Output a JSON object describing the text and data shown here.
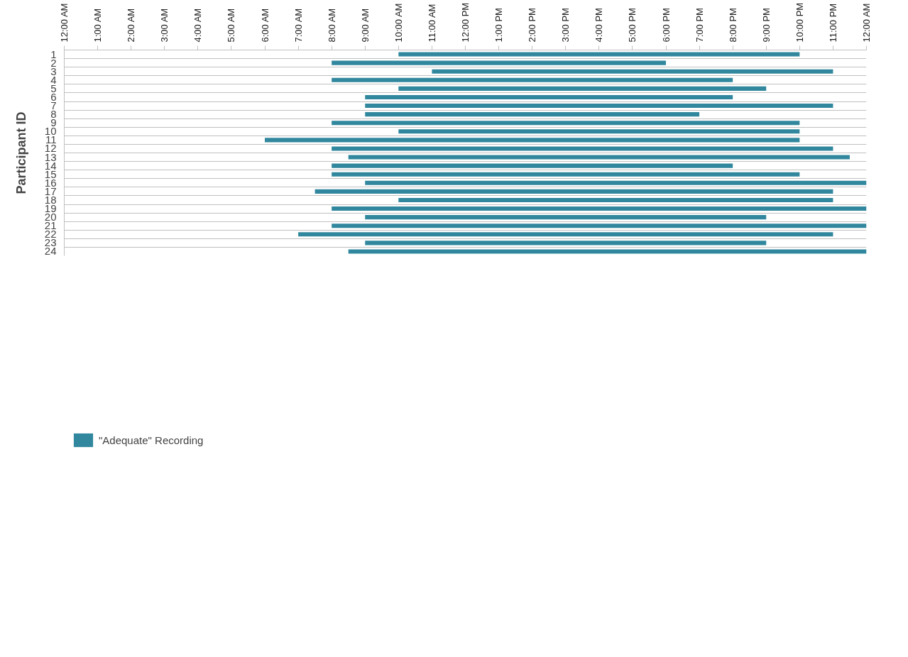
{
  "chart_data": {
    "type": "bar",
    "orientation": "horizontal",
    "ylabel": "Participant ID",
    "categories": [
      "1",
      "2",
      "3",
      "4",
      "5",
      "6",
      "7",
      "8",
      "9",
      "10",
      "11",
      "12",
      "13",
      "14",
      "15",
      "16",
      "17",
      "18",
      "19",
      "20",
      "21",
      "22",
      "23",
      "24"
    ],
    "series": [
      {
        "name": "\"Adequate\" Recording",
        "color": "#31879d",
        "base": [
          10,
          8,
          11,
          8,
          10,
          9,
          9,
          9,
          8,
          10,
          6,
          8,
          8.5,
          8,
          8,
          9,
          7.5,
          10,
          8,
          9,
          8,
          7,
          9,
          8.5
        ],
        "values": [
          12,
          10,
          12,
          12,
          11,
          11,
          14,
          10,
          14,
          12,
          16,
          15,
          15,
          12,
          14,
          15,
          15.5,
          13,
          16,
          12,
          16,
          16,
          12,
          15.5
        ]
      }
    ],
    "xlim": [
      0,
      24
    ],
    "xticks": [
      {
        "value": 0,
        "label": "12:00 AM"
      },
      {
        "value": 1,
        "label": "1:00 AM"
      },
      {
        "value": 2,
        "label": "2:00 AM"
      },
      {
        "value": 3,
        "label": "3:00 AM"
      },
      {
        "value": 4,
        "label": "4:00 AM"
      },
      {
        "value": 5,
        "label": "5:00 AM"
      },
      {
        "value": 6,
        "label": "6:00 AM"
      },
      {
        "value": 7,
        "label": "7:00 AM"
      },
      {
        "value": 8,
        "label": "8:00 AM"
      },
      {
        "value": 9,
        "label": "9:00 AM"
      },
      {
        "value": 10,
        "label": "10:00 AM"
      },
      {
        "value": 11,
        "label": "11:00 AM"
      },
      {
        "value": 12,
        "label": "12:00 PM"
      },
      {
        "value": 13,
        "label": "1:00 PM"
      },
      {
        "value": 14,
        "label": "2:00 PM"
      },
      {
        "value": 15,
        "label": "3:00 PM"
      },
      {
        "value": 16,
        "label": "4:00 PM"
      },
      {
        "value": 17,
        "label": "5:00 PM"
      },
      {
        "value": 18,
        "label": "6:00 PM"
      },
      {
        "value": 19,
        "label": "7:00 PM"
      },
      {
        "value": 20,
        "label": "8:00 PM"
      },
      {
        "value": 21,
        "label": "9:00 PM"
      },
      {
        "value": 22,
        "label": "10:00 PM"
      },
      {
        "value": 23,
        "label": "11:00 PM"
      },
      {
        "value": 24,
        "label": "12:00 AM"
      }
    ],
    "grid": "y",
    "legend": "bottom left"
  }
}
